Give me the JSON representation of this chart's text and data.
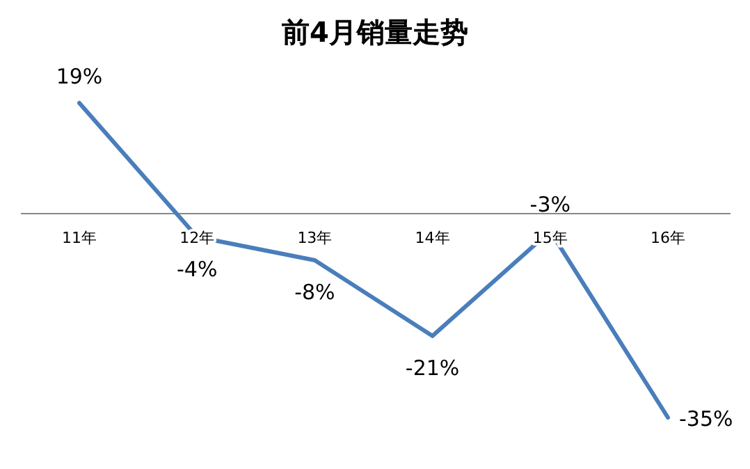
{
  "chart_data": {
    "type": "line",
    "title": "前4月销量走势",
    "categories": [
      "11年",
      "12年",
      "13年",
      "14年",
      "15年",
      "16年"
    ],
    "series": [
      {
        "color": "#4a7ebb",
        "values": [
          19,
          -4,
          -8,
          -21,
          -3,
          -35
        ],
        "value_labels": [
          "19%",
          "-4%",
          "-8%",
          "-21%",
          "-3%",
          "-35%"
        ]
      }
    ],
    "marker": "none"
  }
}
